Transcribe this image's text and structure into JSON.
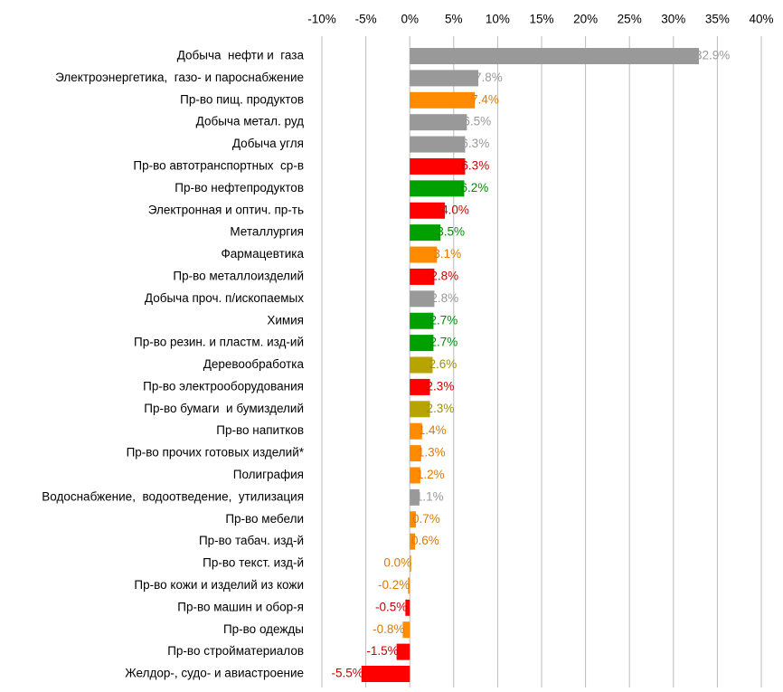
{
  "chart_data": {
    "type": "barh",
    "categories": [
      "Добыча  нефти и  газа",
      "Электроэнергетика,  газо- и пароснабжение",
      "Пр-во пищ. продуктов",
      "Добыча метал. руд",
      "Добыча угля",
      "Пр-во автотранспортных  ср-в",
      "Пр-во нефтепродуктов",
      "Электронная и оптич. пр-ть",
      "Металлургия",
      "Фармацевтика",
      "Пр-во металлоизделий",
      "Добыча проч. п/ископаемых",
      "Химия",
      "Пр-во резин. и пластм. изд-ий",
      "Деревообработка",
      "Пр-во электрооборудования",
      "Пр-во бумаги  и бумизделий",
      "Пр-во напитков",
      "Пр-во прочих готовых изделий*",
      "Полиграфия",
      "Водоснабжение,  водоотведение,  утилизация",
      "Пр-во мебели",
      "Пр-во табач. изд-й",
      "Пр-во текст. изд-й",
      "Пр-во кожи и изделий из кожи",
      "Пр-во машин и обор-я",
      "Пр-во одежды",
      "Пр-во стройматериалов",
      "Желдор-, судо- и авиастроение"
    ],
    "values": [
      32.9,
      7.8,
      7.4,
      6.5,
      6.3,
      6.3,
      6.2,
      4.0,
      3.5,
      3.1,
      2.8,
      2.8,
      2.7,
      2.7,
      2.6,
      2.3,
      2.3,
      1.4,
      1.3,
      1.2,
      1.1,
      0.7,
      0.6,
      0.0,
      -0.2,
      -0.5,
      -0.8,
      -1.5,
      -5.5
    ],
    "value_labels": [
      "32.9%",
      "7.8%",
      "7.4%",
      "6.5%",
      "6.3%",
      "6.3%",
      "6.2%",
      "4.0%",
      "3.5%",
      "3.1%",
      "2.8%",
      "2.8%",
      "2.7%",
      "2.7%",
      "2.6%",
      "2.3%",
      "2.3%",
      "1.4%",
      "1.3%",
      "1.2%",
      "1.1%",
      "0.7%",
      "0.6%",
      "0.0%",
      "-0.2%",
      "-0.5%",
      "-0.8%",
      "-1.5%",
      "-5.5%"
    ],
    "colors": [
      "#999999",
      "#999999",
      "#ff8c00",
      "#999999",
      "#999999",
      "#ff0000",
      "#00a000",
      "#ff0000",
      "#00a000",
      "#ff8c00",
      "#ff0000",
      "#999999",
      "#00a000",
      "#00a000",
      "#b8a400",
      "#ff0000",
      "#b8a400",
      "#ff8c00",
      "#ff8c00",
      "#ff8c00",
      "#999999",
      "#ff8c00",
      "#ff8c00",
      "#ff8c00",
      "#ff8c00",
      "#ff0000",
      "#ff8c00",
      "#ff0000",
      "#ff0000"
    ],
    "value_label_colors": [
      "#999999",
      "#999999",
      "#e07800",
      "#999999",
      "#999999",
      "#cc0000",
      "#008c00",
      "#cc0000",
      "#008c00",
      "#e07800",
      "#cc0000",
      "#999999",
      "#008c00",
      "#008c00",
      "#a09000",
      "#cc0000",
      "#a09000",
      "#e07800",
      "#e07800",
      "#e07800",
      "#999999",
      "#e07800",
      "#e07800",
      "#e07800",
      "#e07800",
      "#cc0000",
      "#e07800",
      "#cc0000",
      "#cc0000"
    ],
    "xlim": [
      -10,
      40
    ],
    "xticks": [
      {
        "value": -10,
        "label": "-10%"
      },
      {
        "value": -5,
        "label": "-5%"
      },
      {
        "value": 0,
        "label": "0%"
      },
      {
        "value": 5,
        "label": "5%"
      },
      {
        "value": 10,
        "label": "10%"
      },
      {
        "value": 15,
        "label": "15%"
      },
      {
        "value": 20,
        "label": "20%"
      },
      {
        "value": 25,
        "label": "25%"
      },
      {
        "value": 30,
        "label": "30%"
      },
      {
        "value": 35,
        "label": "35%"
      },
      {
        "value": 40,
        "label": "40%"
      }
    ],
    "grid": true
  }
}
